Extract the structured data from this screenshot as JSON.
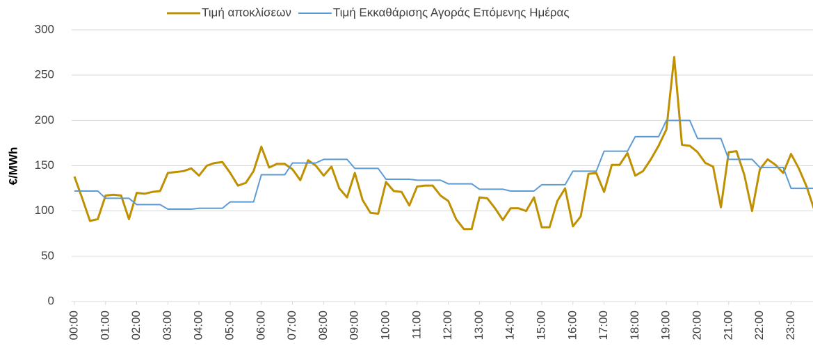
{
  "chart_data": {
    "type": "line",
    "y_label": "€/MWh",
    "categories": [
      "00:00",
      null,
      null,
      null,
      "01:00",
      null,
      null,
      null,
      "02:00",
      null,
      null,
      null,
      "03:00",
      null,
      null,
      null,
      "04:00",
      null,
      null,
      null,
      "05:00",
      null,
      null,
      null,
      "06:00",
      null,
      null,
      null,
      "07:00",
      null,
      null,
      null,
      "08:00",
      null,
      null,
      null,
      "09:00",
      null,
      null,
      null,
      "10:00",
      null,
      null,
      null,
      "11:00",
      null,
      null,
      null,
      "12:00",
      null,
      null,
      null,
      "13:00",
      null,
      null,
      null,
      "14:00",
      null,
      null,
      null,
      "15:00",
      null,
      null,
      null,
      "16:00",
      null,
      null,
      null,
      "17:00",
      null,
      null,
      null,
      "18:00",
      null,
      null,
      null,
      "19:00",
      null,
      null,
      null,
      "20:00",
      null,
      null,
      null,
      "21:00",
      null,
      null,
      null,
      "22:00",
      null,
      null,
      null,
      "23:00",
      null,
      null,
      null
    ],
    "series": [
      {
        "name": "Τιμή αποκλίσεων",
        "color": "#bf9000",
        "values": [
          138,
          114,
          89,
          91,
          117,
          118,
          117,
          91,
          120,
          119,
          121,
          122,
          142,
          143,
          144,
          147,
          139,
          150,
          153,
          154,
          142,
          128,
          131,
          144,
          171,
          148,
          152,
          152,
          146,
          134,
          156,
          150,
          139,
          149,
          125,
          115,
          142,
          112,
          98,
          97,
          132,
          122,
          121,
          106,
          127,
          128,
          128,
          117,
          111,
          91,
          80,
          80,
          115,
          114,
          103,
          90,
          103,
          103,
          100,
          115,
          82,
          82,
          111,
          125,
          83,
          94,
          141,
          142,
          121,
          151,
          151,
          164,
          139,
          144,
          157,
          172,
          190,
          270,
          173,
          172,
          165,
          153,
          149,
          104,
          165,
          166,
          140,
          100,
          146,
          157,
          151,
          142,
          163,
          147,
          127,
          101
        ]
      },
      {
        "name": "Τιμή Εκκαθάρισης Αγοράς Επόμενης Ημέρας",
        "color": "#5b9bd5",
        "values": [
          122,
          122,
          122,
          122,
          114,
          114,
          114,
          114,
          107,
          107,
          107,
          107,
          102,
          102,
          102,
          102,
          103,
          103,
          103,
          103,
          110,
          110,
          110,
          110,
          140,
          140,
          140,
          140,
          153,
          153,
          153,
          153,
          157,
          157,
          157,
          157,
          147,
          147,
          147,
          147,
          135,
          135,
          135,
          135,
          134,
          134,
          134,
          134,
          130,
          130,
          130,
          130,
          124,
          124,
          124,
          124,
          122,
          122,
          122,
          122,
          129,
          129,
          129,
          129,
          144,
          144,
          144,
          144,
          166,
          166,
          166,
          166,
          182,
          182,
          182,
          182,
          200,
          200,
          200,
          200,
          180,
          180,
          180,
          180,
          157,
          157,
          157,
          157,
          148,
          148,
          148,
          148,
          125,
          125,
          125,
          125
        ]
      }
    ],
    "ylim": [
      0,
      300
    ],
    "yticks": [
      0,
      50,
      100,
      150,
      200,
      250,
      300
    ],
    "grid": true,
    "legend": "top"
  }
}
